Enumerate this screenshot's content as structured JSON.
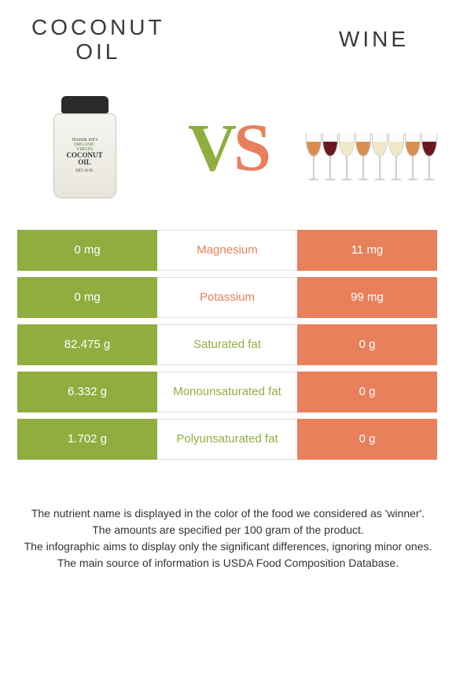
{
  "header": {
    "left_title_line1": "COCONUT",
    "left_title_line2": "OIL",
    "right_title": "WINE"
  },
  "vs_text": {
    "v": "V",
    "s": "S"
  },
  "jar": {
    "line1": "TRADER JOE'S",
    "line2": "ORGANIC",
    "line3": "VIRGIN",
    "main1": "COCONUT",
    "main2": "OIL",
    "line6": "NET 16 FL"
  },
  "colors": {
    "left": "#8fae3f",
    "right": "#e8805c",
    "text_dark": "#3a3a3a",
    "background": "#ffffff",
    "divider": "#e0e0e0"
  },
  "wine_colors": [
    "#d89050",
    "#6b1820",
    "#f0e8c8",
    "#d89050",
    "#f0e8c8",
    "#f0e8c8",
    "#d89050",
    "#6b1820"
  ],
  "rows": [
    {
      "left": "0 mg",
      "label": "Magnesium",
      "right": "11 mg",
      "winner": "right"
    },
    {
      "left": "0 mg",
      "label": "Potassium",
      "right": "99 mg",
      "winner": "right"
    },
    {
      "left": "82.475 g",
      "label": "Saturated fat",
      "right": "0 g",
      "winner": "left"
    },
    {
      "left": "6.332 g",
      "label": "Monounsaturated fat",
      "right": "0 g",
      "winner": "left"
    },
    {
      "left": "1.702 g",
      "label": "Polyunsaturated fat",
      "right": "0 g",
      "winner": "left"
    }
  ],
  "footer": {
    "l1": "The nutrient name is displayed in the color of the food we considered as 'winner'.",
    "l2": "The amounts are specified per 100 gram of the product.",
    "l3": "The infographic aims to display only the significant differences, ignoring minor ones.",
    "l4": "The main source of information is USDA Food Composition Database."
  }
}
